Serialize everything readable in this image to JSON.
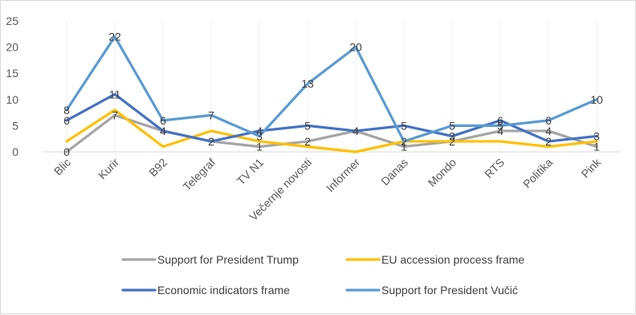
{
  "chart_data": {
    "type": "line",
    "title": "",
    "xlabel": "",
    "ylabel": "",
    "ylim": [
      0,
      25
    ],
    "yticks": [
      0,
      5,
      10,
      15,
      20,
      25
    ],
    "grid": false,
    "legend_position": "bottom",
    "categories": [
      "Blic",
      "Kurir",
      "B92",
      "Telegraf",
      "TV N1",
      "Večernje novosti",
      "Informer",
      "Danas",
      "Mondo",
      "RTS",
      "Politika",
      "Pink"
    ],
    "series": [
      {
        "name": "Support for President Trump",
        "color": "#a5a5a5",
        "values": [
          0,
          7,
          4,
          2,
          1,
          2,
          4,
          1,
          2,
          4,
          4,
          1
        ],
        "labels": true
      },
      {
        "name": "EU accession process frame",
        "color": "#ffc000",
        "values": [
          2,
          8,
          1,
          4,
          2,
          1,
          0,
          2,
          2,
          2,
          1,
          2
        ],
        "labels": false
      },
      {
        "name": "Economic indicators frame",
        "color": "#4472c4",
        "values": [
          6,
          11,
          4,
          2,
          4,
          5,
          4,
          5,
          3,
          6,
          2,
          3
        ],
        "labels": true
      },
      {
        "name": "Support for President Vučić",
        "color": "#5b9bd5",
        "values": [
          8,
          22,
          6,
          7,
          3,
          13,
          20,
          2,
          5,
          5,
          6,
          10
        ],
        "labels": true
      }
    ]
  }
}
